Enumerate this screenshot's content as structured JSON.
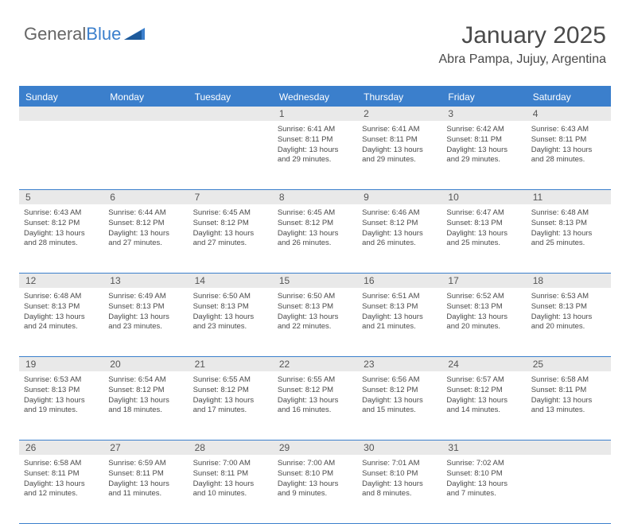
{
  "logo": {
    "text_general": "General",
    "text_blue": "Blue"
  },
  "header": {
    "month_title": "January 2025",
    "location": "Abra Pampa, Jujuy, Argentina"
  },
  "colors": {
    "accent": "#3b7fcc",
    "header_text": "#ffffff",
    "day_num_bg": "#e9e9e9",
    "text": "#4a4a4a",
    "logo_gray": "#666666",
    "background": "#ffffff"
  },
  "day_labels": [
    "Sunday",
    "Monday",
    "Tuesday",
    "Wednesday",
    "Thursday",
    "Friday",
    "Saturday"
  ],
  "weeks": [
    [
      {
        "day": "",
        "lines": []
      },
      {
        "day": "",
        "lines": []
      },
      {
        "day": "",
        "lines": []
      },
      {
        "day": "1",
        "lines": [
          "Sunrise: 6:41 AM",
          "Sunset: 8:11 PM",
          "Daylight: 13 hours and 29 minutes."
        ]
      },
      {
        "day": "2",
        "lines": [
          "Sunrise: 6:41 AM",
          "Sunset: 8:11 PM",
          "Daylight: 13 hours and 29 minutes."
        ]
      },
      {
        "day": "3",
        "lines": [
          "Sunrise: 6:42 AM",
          "Sunset: 8:11 PM",
          "Daylight: 13 hours and 29 minutes."
        ]
      },
      {
        "day": "4",
        "lines": [
          "Sunrise: 6:43 AM",
          "Sunset: 8:11 PM",
          "Daylight: 13 hours and 28 minutes."
        ]
      }
    ],
    [
      {
        "day": "5",
        "lines": [
          "Sunrise: 6:43 AM",
          "Sunset: 8:12 PM",
          "Daylight: 13 hours and 28 minutes."
        ]
      },
      {
        "day": "6",
        "lines": [
          "Sunrise: 6:44 AM",
          "Sunset: 8:12 PM",
          "Daylight: 13 hours and 27 minutes."
        ]
      },
      {
        "day": "7",
        "lines": [
          "Sunrise: 6:45 AM",
          "Sunset: 8:12 PM",
          "Daylight: 13 hours and 27 minutes."
        ]
      },
      {
        "day": "8",
        "lines": [
          "Sunrise: 6:45 AM",
          "Sunset: 8:12 PM",
          "Daylight: 13 hours and 26 minutes."
        ]
      },
      {
        "day": "9",
        "lines": [
          "Sunrise: 6:46 AM",
          "Sunset: 8:12 PM",
          "Daylight: 13 hours and 26 minutes."
        ]
      },
      {
        "day": "10",
        "lines": [
          "Sunrise: 6:47 AM",
          "Sunset: 8:13 PM",
          "Daylight: 13 hours and 25 minutes."
        ]
      },
      {
        "day": "11",
        "lines": [
          "Sunrise: 6:48 AM",
          "Sunset: 8:13 PM",
          "Daylight: 13 hours and 25 minutes."
        ]
      }
    ],
    [
      {
        "day": "12",
        "lines": [
          "Sunrise: 6:48 AM",
          "Sunset: 8:13 PM",
          "Daylight: 13 hours and 24 minutes."
        ]
      },
      {
        "day": "13",
        "lines": [
          "Sunrise: 6:49 AM",
          "Sunset: 8:13 PM",
          "Daylight: 13 hours and 23 minutes."
        ]
      },
      {
        "day": "14",
        "lines": [
          "Sunrise: 6:50 AM",
          "Sunset: 8:13 PM",
          "Daylight: 13 hours and 23 minutes."
        ]
      },
      {
        "day": "15",
        "lines": [
          "Sunrise: 6:50 AM",
          "Sunset: 8:13 PM",
          "Daylight: 13 hours and 22 minutes."
        ]
      },
      {
        "day": "16",
        "lines": [
          "Sunrise: 6:51 AM",
          "Sunset: 8:13 PM",
          "Daylight: 13 hours and 21 minutes."
        ]
      },
      {
        "day": "17",
        "lines": [
          "Sunrise: 6:52 AM",
          "Sunset: 8:13 PM",
          "Daylight: 13 hours and 20 minutes."
        ]
      },
      {
        "day": "18",
        "lines": [
          "Sunrise: 6:53 AM",
          "Sunset: 8:13 PM",
          "Daylight: 13 hours and 20 minutes."
        ]
      }
    ],
    [
      {
        "day": "19",
        "lines": [
          "Sunrise: 6:53 AM",
          "Sunset: 8:13 PM",
          "Daylight: 13 hours and 19 minutes."
        ]
      },
      {
        "day": "20",
        "lines": [
          "Sunrise: 6:54 AM",
          "Sunset: 8:12 PM",
          "Daylight: 13 hours and 18 minutes."
        ]
      },
      {
        "day": "21",
        "lines": [
          "Sunrise: 6:55 AM",
          "Sunset: 8:12 PM",
          "Daylight: 13 hours and 17 minutes."
        ]
      },
      {
        "day": "22",
        "lines": [
          "Sunrise: 6:55 AM",
          "Sunset: 8:12 PM",
          "Daylight: 13 hours and 16 minutes."
        ]
      },
      {
        "day": "23",
        "lines": [
          "Sunrise: 6:56 AM",
          "Sunset: 8:12 PM",
          "Daylight: 13 hours and 15 minutes."
        ]
      },
      {
        "day": "24",
        "lines": [
          "Sunrise: 6:57 AM",
          "Sunset: 8:12 PM",
          "Daylight: 13 hours and 14 minutes."
        ]
      },
      {
        "day": "25",
        "lines": [
          "Sunrise: 6:58 AM",
          "Sunset: 8:11 PM",
          "Daylight: 13 hours and 13 minutes."
        ]
      }
    ],
    [
      {
        "day": "26",
        "lines": [
          "Sunrise: 6:58 AM",
          "Sunset: 8:11 PM",
          "Daylight: 13 hours and 12 minutes."
        ]
      },
      {
        "day": "27",
        "lines": [
          "Sunrise: 6:59 AM",
          "Sunset: 8:11 PM",
          "Daylight: 13 hours and 11 minutes."
        ]
      },
      {
        "day": "28",
        "lines": [
          "Sunrise: 7:00 AM",
          "Sunset: 8:11 PM",
          "Daylight: 13 hours and 10 minutes."
        ]
      },
      {
        "day": "29",
        "lines": [
          "Sunrise: 7:00 AM",
          "Sunset: 8:10 PM",
          "Daylight: 13 hours and 9 minutes."
        ]
      },
      {
        "day": "30",
        "lines": [
          "Sunrise: 7:01 AM",
          "Sunset: 8:10 PM",
          "Daylight: 13 hours and 8 minutes."
        ]
      },
      {
        "day": "31",
        "lines": [
          "Sunrise: 7:02 AM",
          "Sunset: 8:10 PM",
          "Daylight: 13 hours and 7 minutes."
        ]
      },
      {
        "day": "",
        "lines": []
      }
    ]
  ]
}
